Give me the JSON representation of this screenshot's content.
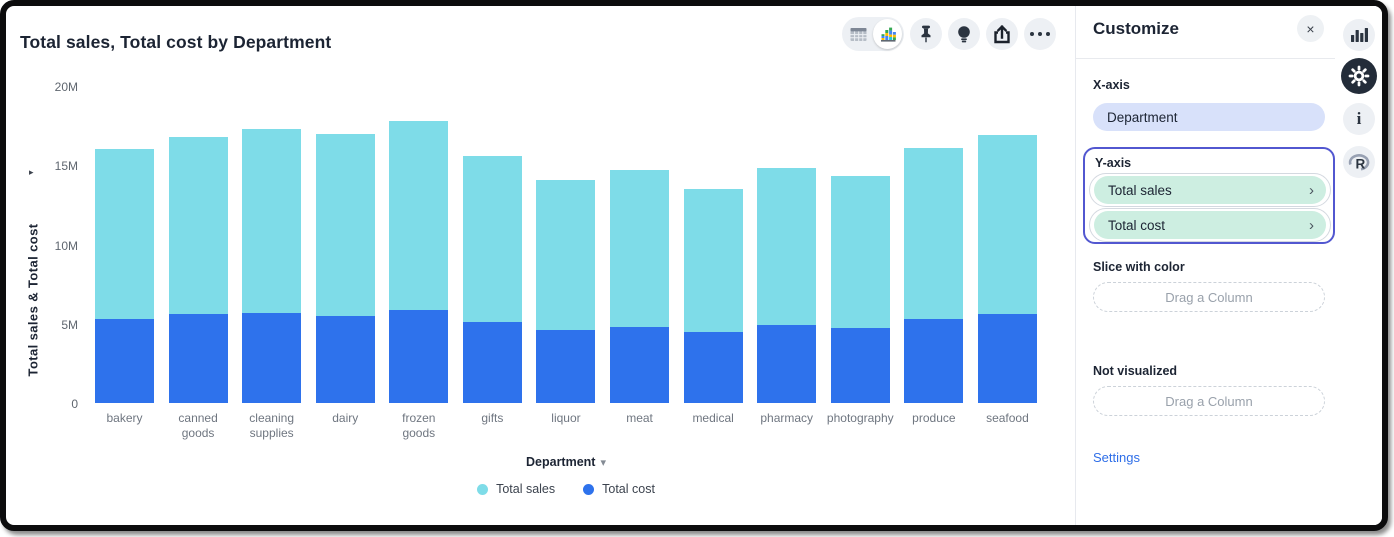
{
  "header": {
    "title": "Total sales, Total cost by Department"
  },
  "toolbar": {
    "view_toggle": {
      "options": [
        "table-view",
        "chart-view"
      ],
      "selected": "chart-view"
    },
    "buttons": [
      "pin",
      "insights",
      "share",
      "more-options"
    ]
  },
  "icons": {
    "close": "×",
    "chevron": "›",
    "caret_down": "▾",
    "y_axis_arrow": "▸",
    "info": "i",
    "r_logo": "R"
  },
  "chart_data": {
    "type": "bar",
    "stacked": true,
    "title": "Total sales, Total cost by Department",
    "xlabel": "Department",
    "ylabel": "Total sales & Total cost",
    "unit": "M",
    "ylim_millions": [
      0,
      20
    ],
    "yticks": [
      "0",
      "5M",
      "10M",
      "15M",
      "20M"
    ],
    "grid": false,
    "legend_position": "bottom",
    "legend": [
      "Total sales",
      "Total cost"
    ],
    "categories": [
      "bakery",
      "canned goods",
      "cleaning supplies",
      "dairy",
      "frozen goods",
      "gifts",
      "liquor",
      "meat",
      "medical",
      "pharmacy",
      "photography",
      "produce",
      "seafood"
    ],
    "series": [
      {
        "name": "Total sales",
        "color": "#7edce8",
        "stack_position": "top",
        "values_millions": [
          10.7,
          11.2,
          11.6,
          11.5,
          11.9,
          10.5,
          9.5,
          9.9,
          9.0,
          9.9,
          9.6,
          10.8,
          11.3
        ]
      },
      {
        "name": "Total cost",
        "color": "#2e72ec",
        "stack_position": "bottom",
        "values_millions": [
          5.3,
          5.6,
          5.7,
          5.5,
          5.9,
          5.1,
          4.6,
          4.8,
          4.5,
          4.9,
          4.75,
          5.3,
          5.6
        ]
      }
    ]
  },
  "customize": {
    "title": "Customize",
    "x_axis": {
      "label": "X-axis",
      "pill": "Department"
    },
    "y_axis": {
      "label": "Y-axis",
      "pills": [
        "Total sales",
        "Total cost"
      ]
    },
    "slice": {
      "label": "Slice with color",
      "placeholder": "Drag a Column"
    },
    "not_visualized": {
      "label": "Not visualized",
      "placeholder": "Drag a Column"
    },
    "settings_label": "Settings"
  },
  "rail": {
    "items": [
      "chart-options",
      "settings",
      "info",
      "r-language"
    ]
  },
  "colors": {
    "sales": "#7edce8",
    "cost": "#2e72ec",
    "selected_border": "#5257d0",
    "pill_green": "#cdeee1",
    "pill_blue": "#d8e1fa",
    "link": "#2e6ee8"
  }
}
